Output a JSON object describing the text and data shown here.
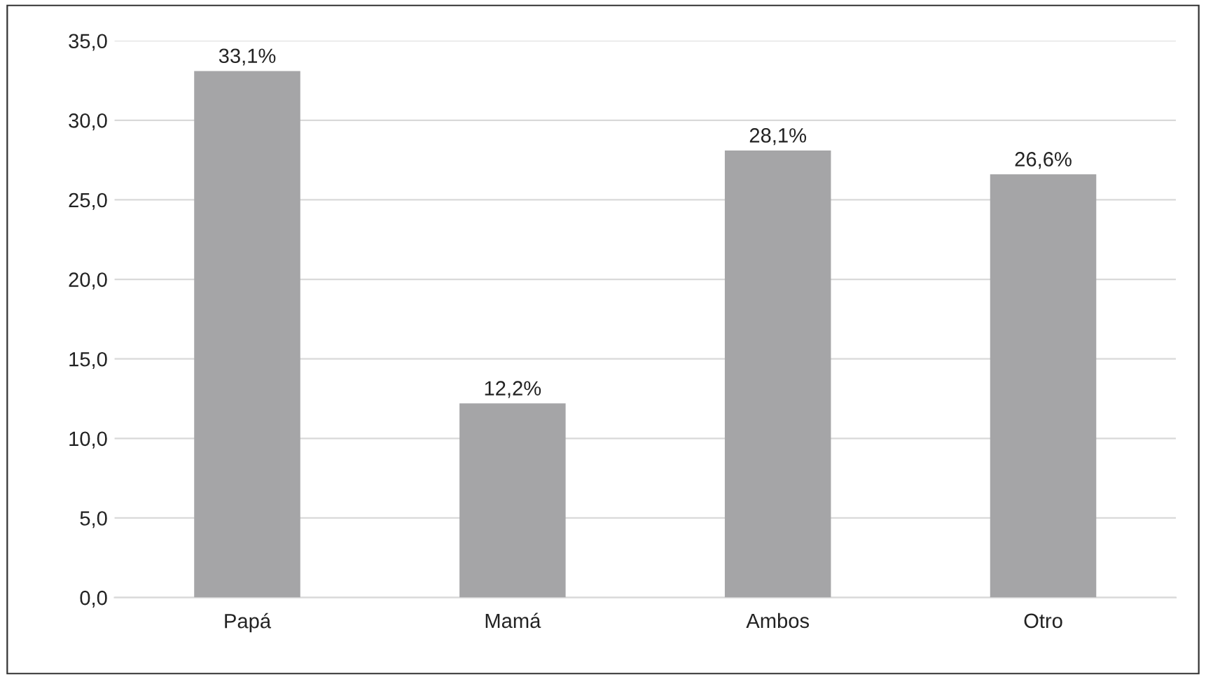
{
  "chart_data": {
    "type": "bar",
    "categories": [
      "Papá",
      "Mamá",
      "Ambos",
      "Otro"
    ],
    "values": [
      33.1,
      12.2,
      28.1,
      26.6
    ],
    "value_labels": [
      "33,1%",
      "12,2%",
      "28,1%",
      "26,6%"
    ],
    "color": "#a5a5a7",
    "ylim": [
      0,
      35
    ],
    "yticks": [
      {
        "value": 0,
        "label": "0,0"
      },
      {
        "value": 5,
        "label": "5,0"
      },
      {
        "value": 10,
        "label": "10,0"
      },
      {
        "value": 15,
        "label": "15,0"
      },
      {
        "value": 20,
        "label": "20,0"
      },
      {
        "value": 25,
        "label": "25,0"
      },
      {
        "value": 30,
        "label": "30,0"
      },
      {
        "value": 35,
        "label": "35,0"
      }
    ],
    "grid": "y"
  }
}
